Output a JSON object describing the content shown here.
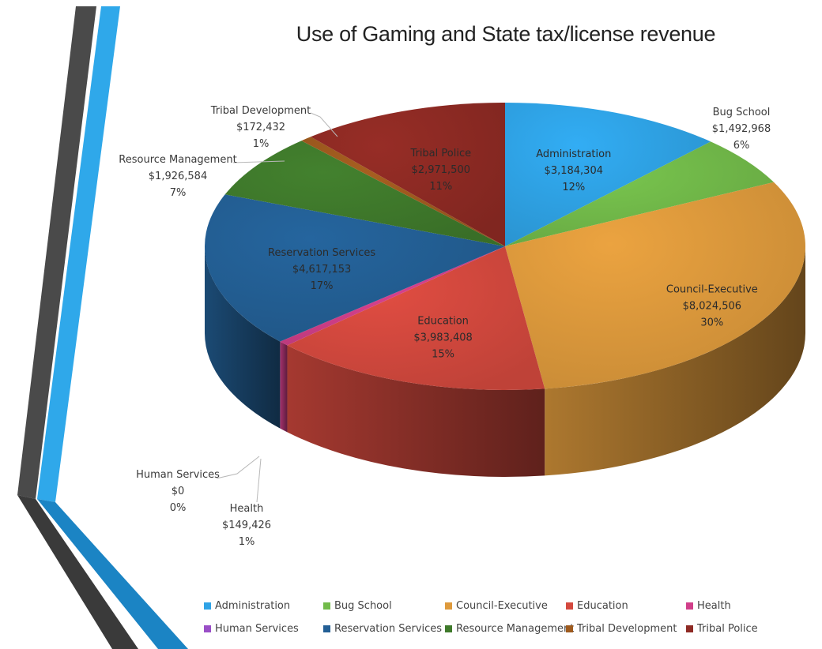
{
  "chart_data": {
    "type": "pie",
    "title": "Use of Gaming and State tax/license revenue",
    "legend_position": "bottom",
    "slices": [
      {
        "name": "Administration",
        "value_label": "$3,184,304",
        "percent_label": "12%",
        "value": 3184304,
        "color": "#2fa3e6"
      },
      {
        "name": "Bug School",
        "value_label": "$1,492,968",
        "percent_label": "6%",
        "value": 1492968,
        "color": "#72bb4a"
      },
      {
        "name": "Council-Executive",
        "value_label": "$8,024,506",
        "percent_label": "30%",
        "value": 8024506,
        "color": "#de9a3c"
      },
      {
        "name": "Education",
        "value_label": "$3,983,408",
        "percent_label": "15%",
        "value": 3983408,
        "color": "#d4493e"
      },
      {
        "name": "Health",
        "value_label": "$149,426",
        "percent_label": "1%",
        "value": 149426,
        "color": "#d13f8a"
      },
      {
        "name": "Human Services",
        "value_label": "$0",
        "percent_label": "0%",
        "value": 0,
        "color": "#9a4fc7"
      },
      {
        "name": "Reservation Services",
        "value_label": "$4,617,153",
        "percent_label": "17%",
        "value": 4617153,
        "color": "#235f95"
      },
      {
        "name": "Resource Management",
        "value_label": "$1,926,584",
        "percent_label": "7%",
        "value": 1926584,
        "color": "#3f7a2b"
      },
      {
        "name": "Tribal Development",
        "value_label": "$172,432",
        "percent_label": "1%",
        "value": 172432,
        "color": "#9e5a1e"
      },
      {
        "name": "Tribal Police",
        "value_label": "$2,971,500",
        "percent_label": "11%",
        "value": 2971500,
        "color": "#8e2a24"
      }
    ]
  }
}
